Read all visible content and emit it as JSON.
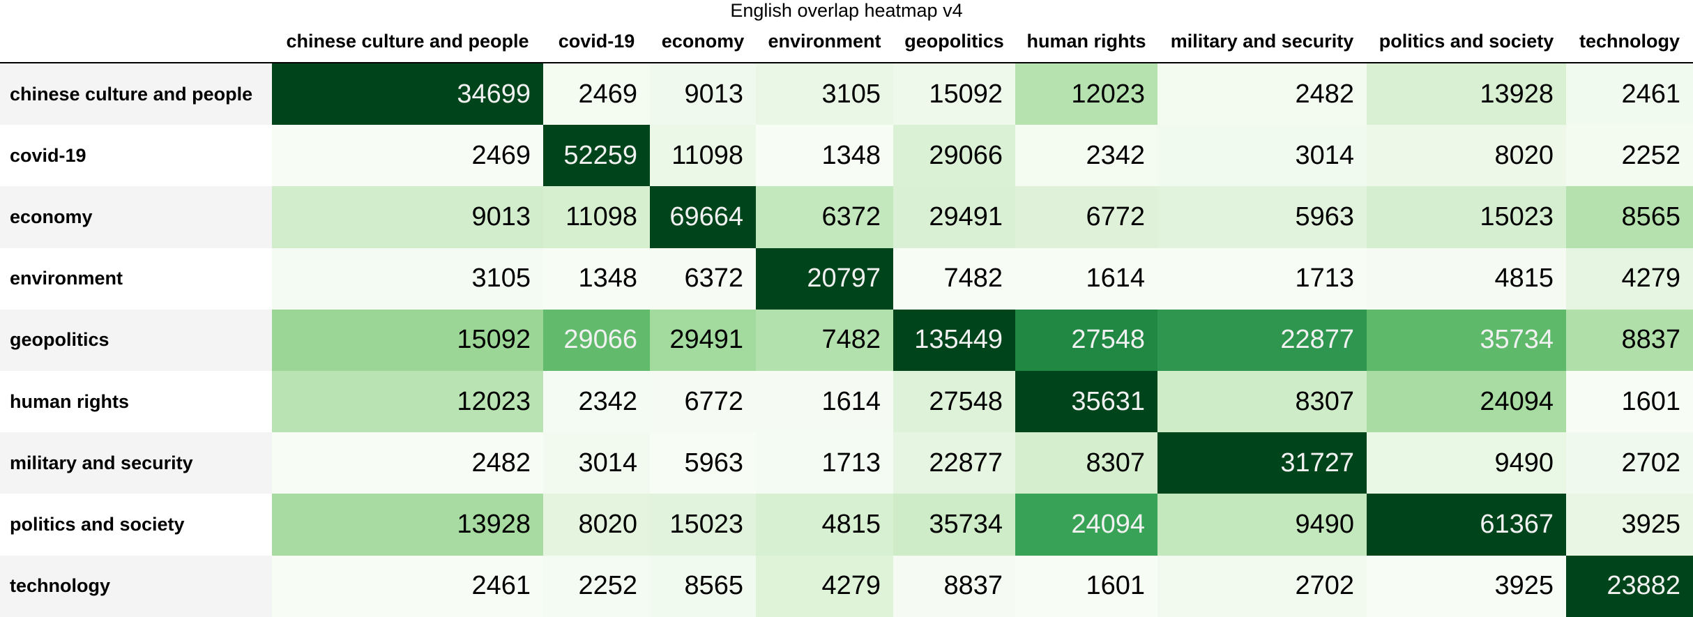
{
  "title": "English overlap heatmap v4",
  "table": {
    "columns": [
      "chinese culture and people",
      "covid-19",
      "economy",
      "environment",
      "geopolitics",
      "human rights",
      "military and security",
      "politics and society",
      "technology"
    ],
    "rows": [
      {
        "label": "chinese culture and people",
        "values": [
          34699,
          2469,
          9013,
          3105,
          15092,
          12023,
          2482,
          13928,
          2461
        ]
      },
      {
        "label": "covid-19",
        "values": [
          2469,
          52259,
          11098,
          1348,
          29066,
          2342,
          3014,
          8020,
          2252
        ]
      },
      {
        "label": "economy",
        "values": [
          9013,
          11098,
          69664,
          6372,
          29491,
          6772,
          5963,
          15023,
          8565
        ]
      },
      {
        "label": "environment",
        "values": [
          3105,
          1348,
          6372,
          20797,
          7482,
          1614,
          1713,
          4815,
          4279
        ]
      },
      {
        "label": "geopolitics",
        "values": [
          15092,
          29066,
          29491,
          7482,
          135449,
          27548,
          22877,
          35734,
          8837
        ]
      },
      {
        "label": "human rights",
        "values": [
          12023,
          2342,
          6772,
          1614,
          27548,
          35631,
          8307,
          24094,
          1601
        ]
      },
      {
        "label": "military and security",
        "values": [
          2482,
          3014,
          5963,
          1713,
          22877,
          8307,
          31727,
          9490,
          2702
        ]
      },
      {
        "label": "politics and society",
        "values": [
          13928,
          8020,
          15023,
          4815,
          35734,
          24094,
          9490,
          61367,
          3925
        ]
      },
      {
        "label": "technology",
        "values": [
          2461,
          2252,
          8565,
          4279,
          8837,
          1601,
          2702,
          3925,
          23882
        ]
      }
    ]
  }
}
